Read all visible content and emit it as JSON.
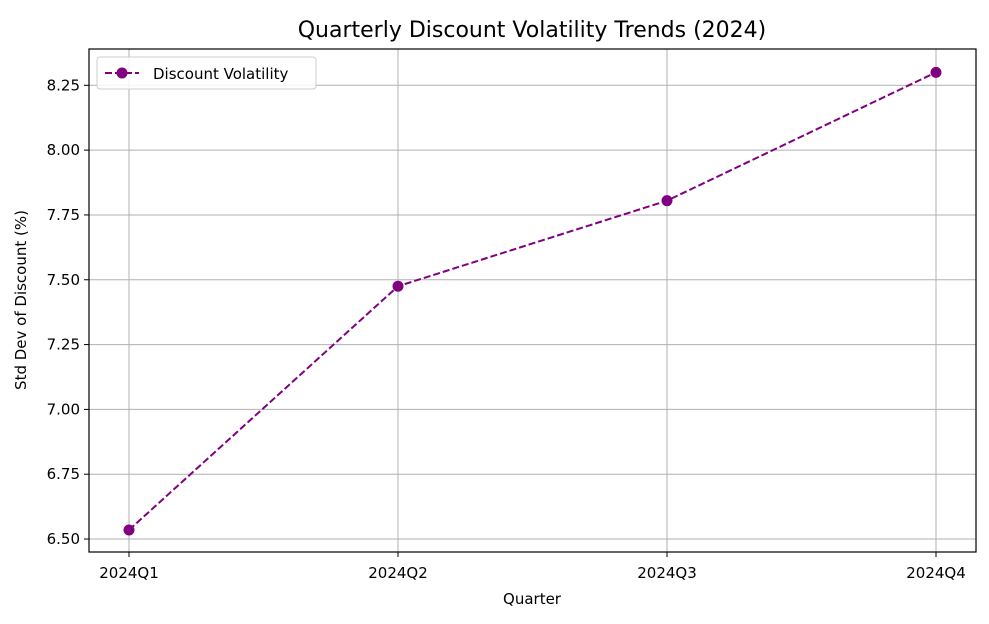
{
  "chart_data": {
    "type": "line",
    "title": "Quarterly Discount Volatility Trends (2024)",
    "xlabel": "Quarter",
    "ylabel": "Std Dev of Discount (%)",
    "categories": [
      "2024Q1",
      "2024Q2",
      "2024Q3",
      "2024Q4"
    ],
    "series": [
      {
        "name": "Discount Volatility",
        "values": [
          6.535,
          7.475,
          7.805,
          8.3
        ],
        "color": "#800080",
        "line_style": "dashed",
        "marker": "circle"
      }
    ],
    "ylim": [
      6.45,
      8.39
    ],
    "yticks": [
      6.5,
      6.75,
      7.0,
      7.25,
      7.5,
      7.75,
      8.0,
      8.25
    ],
    "ytick_labels": [
      "6.50",
      "6.75",
      "7.00",
      "7.25",
      "7.50",
      "7.75",
      "8.00",
      "8.25"
    ],
    "grid": true,
    "grid_color": "#b0b0b0",
    "legend_position": "top-left"
  }
}
